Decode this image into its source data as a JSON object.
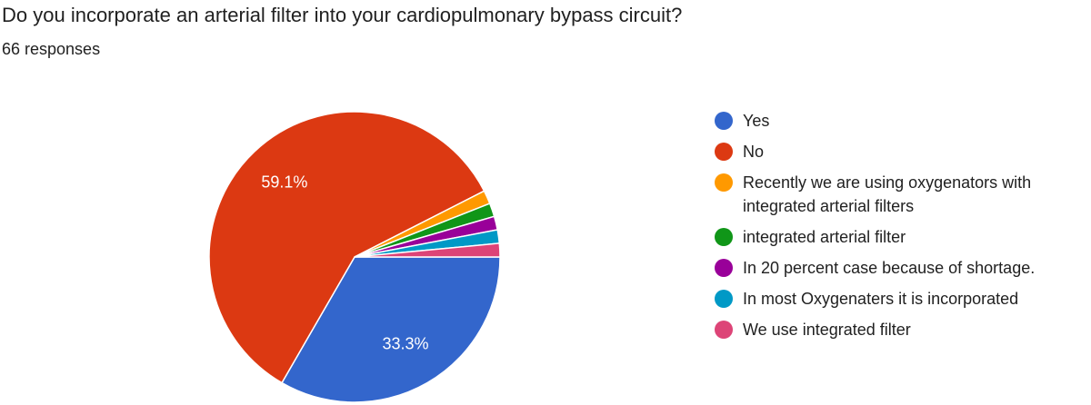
{
  "chart_data": {
    "type": "pie",
    "title": "Do you incorporate an arterial filter into your cardiopulmonary bypass circuit?",
    "subtitle": "66 responses",
    "categories": [
      "Yes",
      "No",
      "Recently we are using oxygenators with integrated arterial filters",
      "integrated arterial filter",
      "In 20 percent case because of shortage.",
      "In most Oxygenaters it is incorporated",
      "We use integrated filter"
    ],
    "values": [
      33.3,
      59.1,
      1.5,
      1.5,
      1.5,
      1.5,
      1.5
    ],
    "value_labels": [
      "33.3%",
      "59.1%",
      null,
      null,
      null,
      null,
      null
    ],
    "colors": [
      "#3366cc",
      "#dc3912",
      "#ff9900",
      "#109618",
      "#990099",
      "#0099c6",
      "#dd4477"
    ]
  }
}
